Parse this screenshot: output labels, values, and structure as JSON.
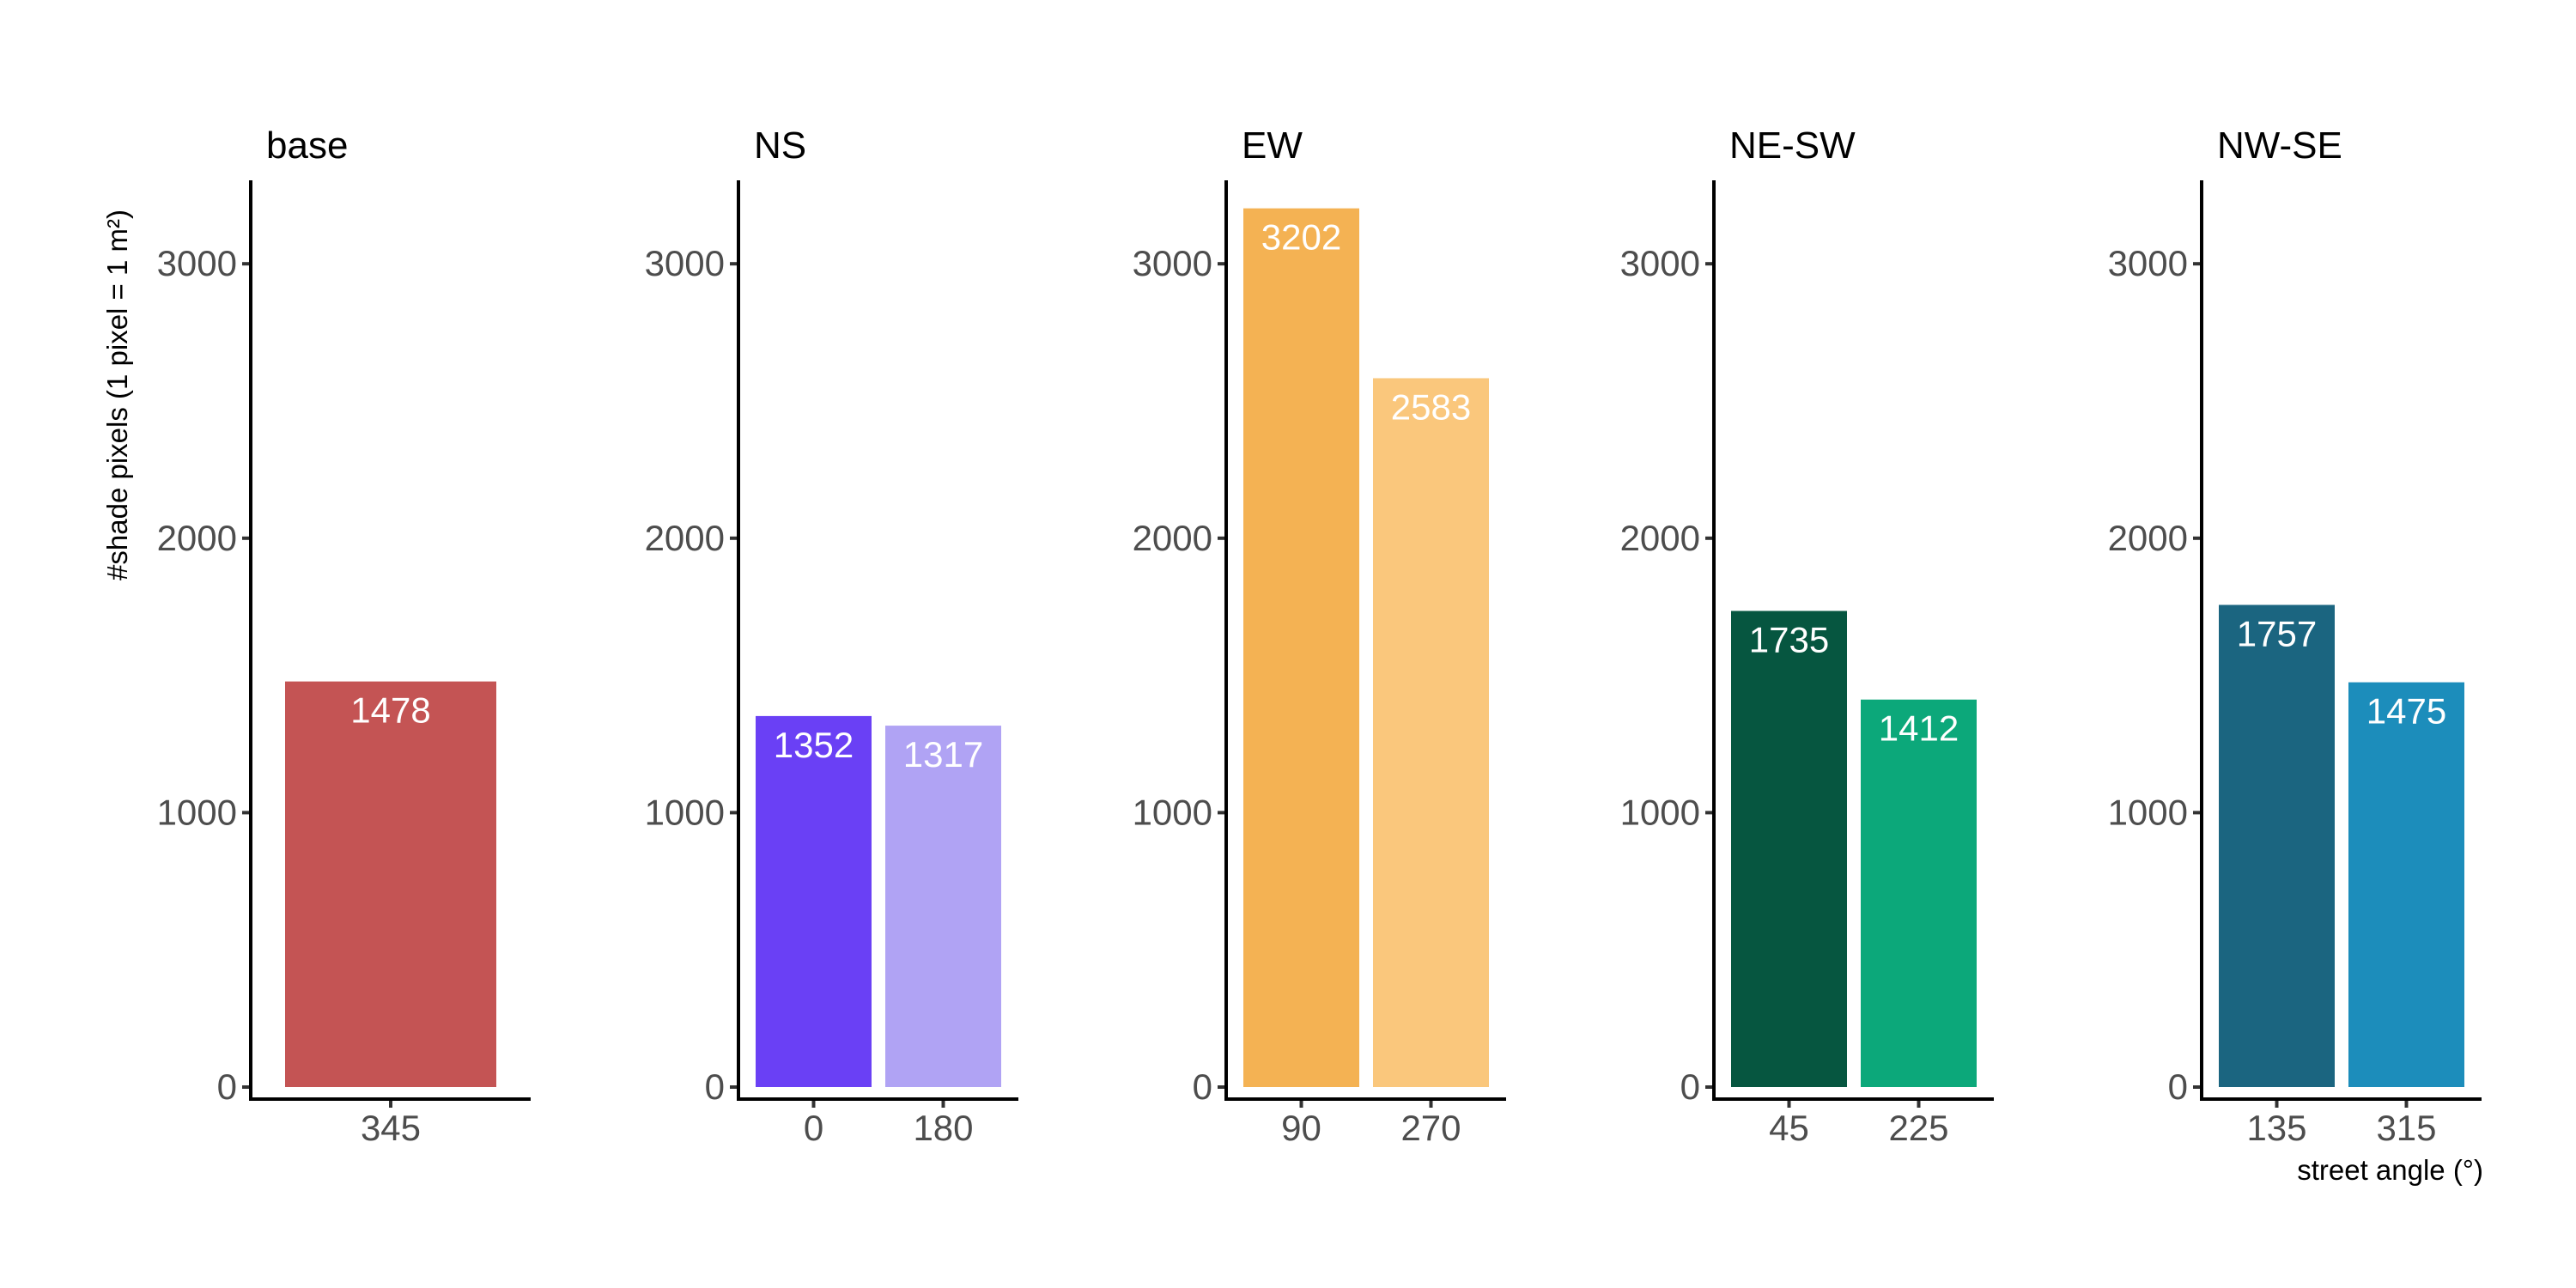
{
  "chart_data": {
    "type": "bar",
    "ylabel": "#shade pixels (1 pixel = 1 m²)",
    "xlabel": "street angle (°)",
    "ylim": [
      0,
      3300
    ],
    "yticks": [
      0,
      1000,
      2000,
      3000
    ],
    "grid": false,
    "panels": [
      {
        "title": "base",
        "categories": [
          "345"
        ],
        "values": [
          1478
        ],
        "colors": [
          "#c45454"
        ]
      },
      {
        "title": "NS",
        "categories": [
          "0",
          "180"
        ],
        "values": [
          1352,
          1317
        ],
        "colors": [
          "#6a40f5",
          "#b0a3f4"
        ]
      },
      {
        "title": "EW",
        "categories": [
          "90",
          "270"
        ],
        "values": [
          3202,
          2583
        ],
        "colors": [
          "#f4b253",
          "#fac77c"
        ]
      },
      {
        "title": "NE-SW",
        "categories": [
          "45",
          "225"
        ],
        "values": [
          1735,
          1412
        ],
        "colors": [
          "#065640",
          "#0ca87a"
        ]
      },
      {
        "title": "NW-SE",
        "categories": [
          "135",
          "315"
        ],
        "values": [
          1757,
          1475
        ],
        "colors": [
          "#1b6580",
          "#1c8dbb"
        ]
      }
    ]
  }
}
